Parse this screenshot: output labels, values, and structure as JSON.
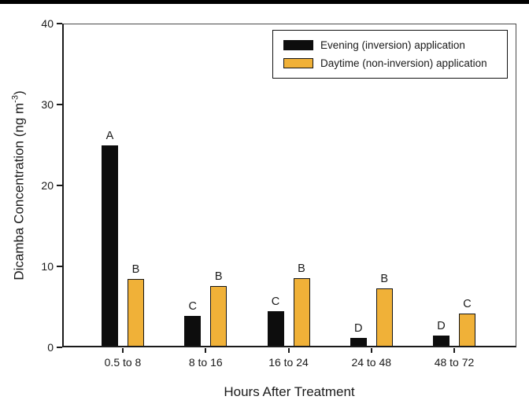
{
  "figure": {
    "top_band_color": "#000000",
    "background": "#ffffff"
  },
  "chart_data": {
    "type": "bar",
    "title": "",
    "xlabel": "Hours After Treatment",
    "ylabel": "Dicamba Concentration (ng m-3)",
    "ylabel_parts": {
      "main": "Dicamba Concentration (ng m",
      "sup": "-3",
      "close": ")"
    },
    "categories": [
      "0.5 to 8",
      "8 to 16",
      "16 to 24",
      "24 to 48",
      "48 to 72"
    ],
    "series": [
      {
        "name": "Evening (inversion) application",
        "color": "#0d0d0d",
        "border": "#0d0d0d",
        "values": [
          25.0,
          3.9,
          4.5,
          1.2,
          1.5
        ],
        "letters": [
          "A",
          "C",
          "C",
          "D",
          "D"
        ]
      },
      {
        "name": "Daytime (non-inversion) application",
        "color": "#F0B138",
        "border": "#141414",
        "values": [
          8.4,
          7.6,
          8.5,
          7.3,
          4.2
        ],
        "letters": [
          "B",
          "B",
          "B",
          "B",
          "C"
        ]
      }
    ],
    "ylim": [
      0,
      40
    ],
    "yticks": [
      0,
      10,
      20,
      30,
      40
    ],
    "grid": false,
    "legend_position": "top-right"
  }
}
